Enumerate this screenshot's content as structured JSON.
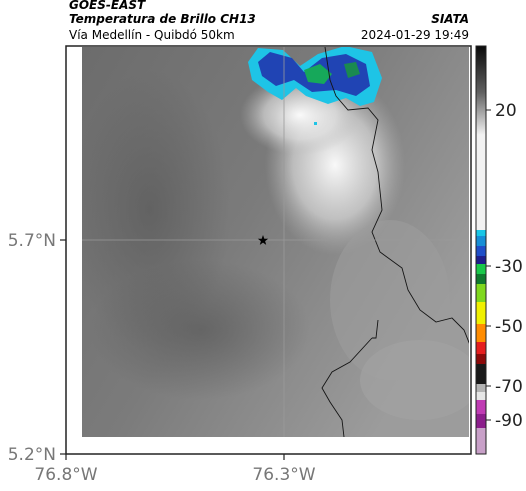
{
  "header": {
    "satellite": "GOES-EAST",
    "product": "Temperatura de Brillo CH13",
    "route": "Vía Medellín - Quibdó 50km",
    "org": "SIATA",
    "datetime": "2024-01-29 19:49"
  },
  "map": {
    "lat_labels": [
      "5.7°N",
      "5.2°N"
    ],
    "lon_labels": [
      "76.8°W",
      "76.3°W"
    ],
    "marker": "star-marker"
  },
  "colorbar": {
    "labels": [
      "20",
      "-30",
      "-50",
      "-70",
      "-90"
    ],
    "colors": {
      "high": "#111111",
      "cyan": "#19c6e6",
      "blue": "#1f4ec8",
      "green": "#19c84a",
      "yellow": "#f0f000",
      "orange": "#ff8c00",
      "red": "#e61e1e",
      "magenta": "#c03cb4"
    }
  }
}
